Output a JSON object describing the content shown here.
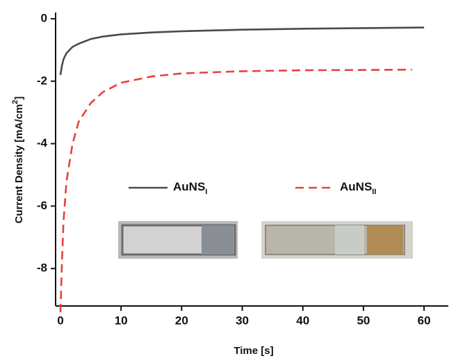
{
  "chart_data": {
    "type": "line",
    "xlabel": "Time [s]",
    "ylabel": [
      "Current Density [mA/cm",
      "2",
      "]"
    ],
    "xlim": [
      -0.8,
      64
    ],
    "ylim": [
      -9.2,
      0.2
    ],
    "xticks": [
      0,
      10,
      20,
      30,
      40,
      50,
      60
    ],
    "yticks": [
      0,
      -2,
      -4,
      -6,
      -8
    ],
    "series": [
      {
        "name": "AuNS",
        "subscript": "I",
        "color": "#4a4a4a",
        "dashed": false,
        "x": [
          0,
          0.25,
          0.5,
          1,
          2,
          3,
          5,
          7,
          10,
          15,
          20,
          30,
          40,
          50,
          60
        ],
        "values": [
          -1.8,
          -1.5,
          -1.3,
          -1.1,
          -0.9,
          -0.8,
          -0.65,
          -0.57,
          -0.5,
          -0.44,
          -0.4,
          -0.35,
          -0.32,
          -0.3,
          -0.28
        ]
      },
      {
        "name": "AuNS",
        "subscript": "II",
        "color": "#e8413c",
        "dashed": true,
        "x": [
          0,
          0.25,
          0.5,
          1,
          2,
          3,
          5,
          7,
          10,
          15,
          20,
          30,
          40,
          50,
          58
        ],
        "values": [
          -9.4,
          -7.8,
          -6.5,
          -5.2,
          -4.0,
          -3.3,
          -2.7,
          -2.35,
          -2.05,
          -1.85,
          -1.75,
          -1.68,
          -1.65,
          -1.64,
          -1.63
        ]
      }
    ]
  }
}
